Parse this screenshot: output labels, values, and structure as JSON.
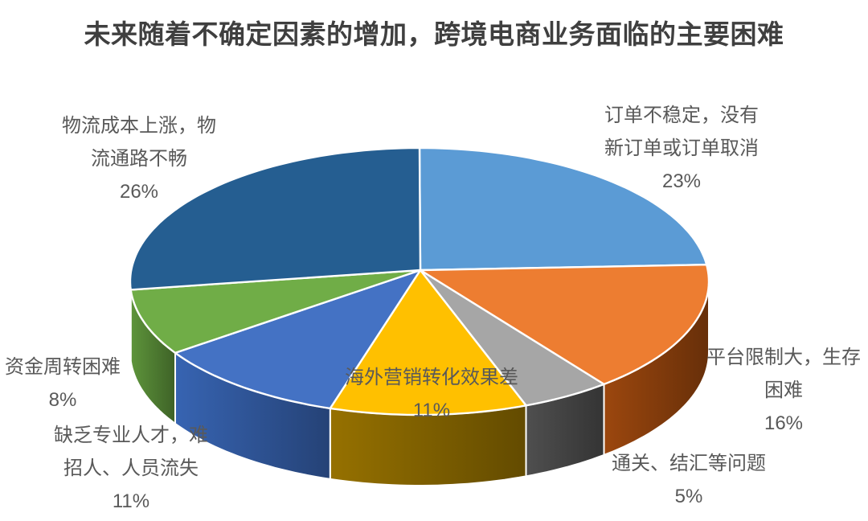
{
  "title": "未来随着不确定因素的增加，跨境电商业务面临的主要困难",
  "background_color": "#ffffff",
  "title_color": "#3f3f3f",
  "label_color": "#595959",
  "chart_data": {
    "type": "pie",
    "effect": "3d",
    "title": "未来随着不确定因素的增加，跨境电商业务面临的主要困难",
    "start_angle_deg": 0,
    "direction": "clockwise",
    "legend": "none",
    "slices": [
      {
        "label": "订单不稳定，没有新订单或订单取消",
        "value_pct": 23,
        "color": "#5B9BD5",
        "side_color": "#41719C",
        "label_lines": [
          "订单不稳定，没有",
          "新订单或订单取消",
          "23%"
        ]
      },
      {
        "label": "平台限制大，生存困难",
        "value_pct": 16,
        "color": "#ED7D31",
        "side_color": "#843C0C",
        "label_lines": [
          "平台限制大，生存",
          "困难",
          "16%"
        ]
      },
      {
        "label": "通关、结汇等问题",
        "value_pct": 5,
        "color": "#A6A6A6",
        "side_color": "#434343",
        "label_lines": [
          "通关、结汇等问题",
          "5%"
        ]
      },
      {
        "label": "海外营销转化效果差",
        "value_pct": 11,
        "color": "#FFC000",
        "side_color": "#7F6000",
        "label_lines": [
          "海外营销转化效果差",
          "11%"
        ]
      },
      {
        "label": "缺乏专业人才，难招人、人员流失",
        "value_pct": 11,
        "color": "#4472C4",
        "side_color": "#2F5597",
        "label_lines": [
          "缺乏专业人才，难",
          "招人、人员流失",
          "11%"
        ]
      },
      {
        "label": "资金周转困难",
        "value_pct": 8,
        "color": "#70AD47",
        "side_color": "#507E32",
        "label_lines": [
          "资金周转困难",
          "8%"
        ]
      },
      {
        "label": "物流成本上涨，物流通路不畅",
        "value_pct": 26,
        "color": "#255E91",
        "side_color": "#1F4E79",
        "label_lines": [
          "物流成本上涨，物",
          "流通路不畅",
          "26%"
        ]
      }
    ]
  }
}
